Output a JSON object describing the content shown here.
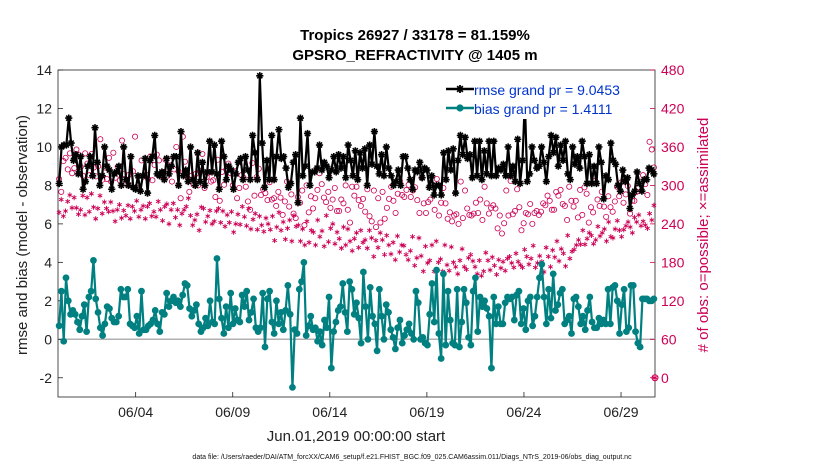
{
  "chart_data": {
    "type": "line",
    "title": "Tropics 26927 / 33178 = 81.159%",
    "subtitle": "GPSRO_REFRACTIVITY @ 1405 m",
    "xlabel": "Jun.01,2019 00:00:00 start",
    "ylabel": "rmse and bias (model - observation)",
    "y2label": "# of obs: o=possible; ×=assimilated",
    "footnote": "data file: /Users/raeder/DAI/ATM_forcXX/CAM6_setup/f.e21.FHIST_BGC.f09_025.CAM6assim.011/Diags_NTrS_2019-06/obs_diag_output.nc",
    "x_tick_labels": [
      "06/04",
      "06/09",
      "06/14",
      "06/19",
      "06/24",
      "06/29"
    ],
    "x_tick_days": [
      4,
      9,
      14,
      19,
      24,
      29
    ],
    "xlim": [
      0.0,
      30.75
    ],
    "ylim": [
      -3,
      14
    ],
    "y_ticks": [
      -2,
      0,
      2,
      4,
      6,
      8,
      10,
      12,
      14
    ],
    "y2lim": [
      -30,
      480
    ],
    "y2_ticks": [
      0,
      60,
      120,
      180,
      240,
      300,
      360,
      420,
      480
    ],
    "grid": false,
    "legend_position": "top-right",
    "colors": {
      "rmse": "#000000",
      "bias": "#008080",
      "obs": "#cc0055",
      "zero_line": "#b0b0b0",
      "legend_text": "#0033cc"
    },
    "series": [
      {
        "name": "rmse grand pr = 9.0453",
        "axis": "left",
        "marker": "star",
        "values": [
          8.1,
          10.0,
          10.1,
          10.1,
          11.5,
          10.2,
          9.3,
          9.6,
          8.6,
          9.5,
          7.8,
          8.2,
          9.0,
          9.5,
          8.5,
          11.0,
          9.2,
          8.0,
          8.5,
          10.0,
          9.0,
          8.8,
          7.8,
          8.6,
          8.7,
          9.0,
          8.0,
          10.0,
          8.3,
          8.0,
          9.5,
          7.9,
          7.8,
          8.5,
          7.7,
          8.5,
          9.4,
          7.6,
          9.3,
          9.5,
          10.6,
          8.6,
          8.5,
          8.7,
          8.3,
          9.4,
          8.6,
          9.0,
          9.5,
          9.5,
          8.0,
          10.8,
          8.5,
          8.8,
          8.2,
          10.0,
          8.3,
          8.0,
          9.7,
          8.2,
          9.2,
          8.0,
          8.7,
          10.3,
          8.7,
          10.1,
          8.6,
          7.8,
          10.3,
          9.5,
          8.3,
          9.0,
          8.8,
          7.8,
          8.6,
          9.2,
          9.4,
          8.3,
          9.5,
          8.8,
          8.3,
          10.6,
          9.7,
          8.3,
          13.7,
          10.2,
          7.9,
          9.3,
          8.3,
          10.6,
          8.3,
          9.5,
          10.9,
          9.4,
          9.5,
          8.9,
          7.9,
          8.1,
          9.2,
          9.6,
          7.1,
          11.5,
          8.5,
          9.0,
          10.7,
          8.0,
          8.7,
          8.7,
          8.9,
          10.1,
          8.8,
          9.2,
          9.0,
          8.4,
          8.8,
          9.5,
          8.7,
          9.6,
          8.9,
          9.5,
          8.4,
          10.1,
          9.3,
          8.5,
          9.8,
          8.3,
          9.7,
          8.9,
          9.9,
          8.0,
          10.1,
          9.1,
          10.8,
          9.0,
          8.6,
          9.6,
          8.5,
          10.0,
          8.9,
          8.5,
          8.0,
          8.2,
          8.8,
          8.0,
          9.5,
          9.5,
          8.9,
          8.3,
          7.8,
          8.8,
          8.7,
          9.2,
          8.4,
          8.9,
          8.8,
          7.9,
          8.5,
          7.5,
          8.0,
          8.0,
          7.5,
          9.7,
          8.3,
          9.8,
          8.8,
          9.9,
          7.6,
          9.3,
          10.6,
          9.6,
          10.5,
          9.4,
          9.6,
          8.4,
          10.3,
          8.5,
          10.3,
          8.3,
          9.8,
          8.6,
          10.3,
          8.5,
          10.3,
          8.5,
          8.9,
          8.8,
          9.1,
          8.5,
          10.0,
          8.5,
          9.0,
          8.2,
          10.4,
          8.1,
          9.3,
          12.4,
          8.2,
          8.6,
          10.0,
          9.3,
          8.9,
          9.0,
          10.0,
          9.2,
          8.2,
          9.5,
          10.6,
          9.7,
          10.5,
          9.0,
          10.1,
          9.3,
          10.3,
          8.6,
          8.3,
          10.0,
          9.1,
          9.5,
          8.9,
          10.3,
          9.5,
          8.1,
          9.6,
          8.1,
          9.0,
          8.1,
          10.0,
          9.2,
          7.3,
          8.5,
          8.3,
          10.2,
          9.3,
          9.1,
          8.0,
          7.7,
          8.8,
          8.2,
          8.4,
          6.8,
          7.5,
          7.7,
          8.7,
          8.1,
          7.7,
          8.3,
          8.3,
          8.9,
          8.8,
          8.6
        ]
      },
      {
        "name": "bias grand pr = 1.4111",
        "axis": "left",
        "marker": "dot",
        "values": [
          0.7,
          2.5,
          -0.1,
          3.2,
          2.0,
          1.3,
          1.5,
          1.3,
          0.9,
          0.5,
          1.2,
          1.8,
          0.4,
          2.2,
          2.5,
          4.1,
          2.1,
          1.4,
          0.6,
          0.2,
          0.8,
          1.7,
          1.6,
          1.1,
          0.9,
          0.9,
          1.2,
          2.6,
          2.2,
          2.2,
          2.6,
          0.8,
          0.7,
          0.6,
          1.2,
          0.3,
          2.5,
          0.5,
          0.5,
          0.7,
          0.8,
          1.0,
          1.5,
          0.8,
          0.4,
          1.4,
          1.3,
          2.4,
          1.7,
          2.0,
          2.2,
          1.9,
          2.0,
          1.7,
          2.3,
          2.9,
          2.8,
          1.6,
          1.2,
          1.5,
          1.8,
          0.8,
          0.4,
          0.6,
          1.1,
          0.7,
          2.0,
          0.9,
          0.8,
          4.2,
          2.1,
          1.1,
          0.3,
          1.7,
          0.6,
          2.4,
          0.8,
          1.6,
          1.0,
          0.9,
          2.3,
          1.7,
          2.5,
          1.0,
          1.4,
          2.1,
          0.6,
          0.4,
          0.6,
          2.4,
          -0.4,
          2.1,
          2.5,
          0.9,
          0.3,
          2.0,
          0.8,
          1.4,
          0.5,
          1.5,
          2.8,
          1.3,
          -2.5,
          0.5,
          0.3,
          2.6,
          3.0,
          4.0,
          0.2,
          0.7,
          1.2,
          0.5,
          0.6,
          -0.1,
          0.4,
          -0.3,
          1.0,
          0.6,
          2.2,
          -1.5,
          0.4,
          0.9,
          1.5,
          1.7,
          2.9,
          1.4,
          0.4,
          3.0,
          2.6,
          1.3,
          1.9,
          1.1,
          -0.2,
          3.5,
          1.7,
          0.0,
          2.7,
          1.2,
          0.8,
          -0.6,
          2.6,
          1.2,
          0.0,
          1.8,
          1.4,
          0.5,
          0.1,
          -0.5,
          0.6,
          1.0,
          -0.2,
          0.2,
          0.5,
          0.8,
          0.3,
          0.0,
          2.5,
          1.9,
          0.0,
          0.1,
          -0.2,
          -0.3,
          1.3,
          2.9,
          0.9,
          3.6,
          0.3,
          -1.0,
          3.4,
          -0.3,
          2.5,
          1.0,
          -0.2,
          -0.3,
          2.6,
          -0.4,
          0.9,
          2.6,
          1.9,
          0.1,
          -0.3,
          2.5,
          3.2,
          0.4,
          2.2,
          1.7,
          2.0,
          1.6,
          1.2,
          -1.5,
          2.2,
          0.8,
          1.7,
          0.8,
          0.8,
          1.9,
          2.2,
          2.1,
          2.2,
          1.0,
          2.3,
          2.5,
          0.8,
          1.6,
          0.5,
          2.0,
          2.2,
          0.7,
          1.2,
          2.2,
          3.2,
          3.9,
          2.2,
          0.8,
          2.6,
          1.1,
          3.4,
          1.5,
          1.8,
          2.4,
          2.6,
          0.8,
          1.0,
          1.2,
          0.3,
          2.1,
          2.2,
          1.7,
          0.8,
          1.2,
          0.5,
          1.5,
          2.2,
          0.9,
          0.6,
          0.6,
          1.1,
          0.8,
          1.0,
          0.8,
          2.6,
          0.8,
          2.7,
          2.8,
          2.0,
          0.3,
          1.8,
          2.6,
          0.4,
          0.6,
          2.8,
          2.8,
          0.4,
          -0.2,
          -0.4,
          2.1,
          2.1,
          2.1,
          2.0,
          2.0,
          2.1
        ]
      },
      {
        "name": "",
        "axis": "right",
        "marker": "circle",
        "values": [
          310,
          290,
          338,
          343,
          325,
          350,
          319,
          327,
          356,
          348,
          329,
          315,
          350,
          334,
          316,
          349,
          328,
          314,
          330,
          372,
          309,
          328,
          310,
          343,
          306,
          351,
          312,
          329,
          308,
          370,
          318,
          302,
          316,
          300,
          322,
          376,
          296,
          294,
          339,
          314,
          317,
          310,
          345,
          308,
          332,
          348,
          339,
          314,
          321,
          340,
          315,
          339,
          306,
          325,
          360,
          322,
          280,
          376,
          337,
          313,
          290,
          315,
          301,
          318,
          300,
          322,
          349,
          296,
          313,
          320,
          306,
          308,
          282,
          340,
          276,
          321,
          301,
          325,
          334,
          319,
          300,
          322,
          280,
          296,
          316,
          312,
          298,
          275,
          262,
          335,
          284,
          313,
          326,
          285,
          294,
          288,
          277,
          305,
          278,
          280,
          268,
          290,
          281,
          254,
          275,
          306,
          267,
          286,
          256,
          249,
          282,
          273,
          292,
          238,
          300,
          258,
          283,
          264,
          280,
          293,
          319,
          302,
          281,
          274,
          290,
          265,
          278,
          296,
          260,
          260,
          278,
          272,
          300,
          262,
          242,
          298,
          284,
          298,
          277,
          268,
          279,
          259,
          294,
          252,
          244,
          292,
          235,
          280,
          242,
          290,
          248,
          265,
          279,
          298,
          276,
          257,
          287,
          307,
          285,
          282,
          293,
          301,
          282,
          292,
          297,
          277,
          257,
          312,
          272,
          257,
          274,
          278,
          301,
          262,
          310,
          253,
          273,
          296,
          272,
          248,
          258,
          244,
          253,
          255,
          240,
          306,
          249,
          292,
          264,
          254,
          253,
          256,
          273,
          257,
          278,
          246,
          298,
          272,
          256,
          265,
          269,
          264,
          233,
          253,
          225,
          241,
          292,
          253,
          307,
          255,
          260,
          294,
          266,
          230,
          241,
          257,
          255,
          271,
          240,
          257,
          260,
          254,
          259,
          272,
          269,
          284,
          276,
          262,
          262,
          290,
          284,
          293,
          271,
          268,
          246,
          298,
          276,
          267,
          276,
          250,
          293,
          254,
          297,
          287,
          242,
          266,
          258,
          307,
          278,
          268,
          290,
          267,
          251,
          283,
          266,
          259,
          275,
          298,
          283,
          305,
          273,
          286,
          299,
          256,
          276,
          276,
          290,
          297,
          306,
          316,
          302,
          285,
          368,
          356,
          328
        ]
      },
      {
        "name": "",
        "axis": "right",
        "marker": "asterisk",
        "values": [
          258,
          278,
          252,
          260,
          275,
          285,
          265,
          281,
          265,
          255,
          262,
          284,
          254,
          281,
          259,
          287,
          266,
          248,
          264,
          284,
          256,
          274,
          264,
          259,
          274,
          260,
          244,
          262,
          270,
          249,
          261,
          253,
          269,
          248,
          267,
          260,
          276,
          251,
          262,
          268,
          248,
          267,
          272,
          252,
          259,
          251,
          275,
          262,
          245,
          267,
          271,
          240,
          262,
          272,
          250,
          262,
          238,
          256,
          262,
          267,
          280,
          253,
          238,
          246,
          255,
          230,
          266,
          264,
          243,
          252,
          261,
          240,
          244,
          260,
          264,
          242,
          260,
          236,
          254,
          242,
          259,
          227,
          240,
          255,
          239,
          267,
          251,
          237,
          264,
          232,
          247,
          256,
          231,
          252,
          238,
          228,
          249,
          240,
          231,
          252,
          214,
          235,
          258,
          230,
          243,
          216,
          233,
          246,
          213,
          253,
          236,
          238,
          213,
          232,
          207,
          244,
          211,
          230,
          227,
          207,
          246,
          220,
          229,
          205,
          253,
          212,
          233,
          240,
          209,
          227,
          217,
          202,
          235,
          207,
          232,
          213,
          198,
          217,
          226,
          203,
          230,
          211,
          215,
          202,
          230,
          218,
          189,
          214,
          203,
          226,
          215,
          192,
          222,
          207,
          193,
          211,
          184,
          221,
          196,
          207,
          206,
          192,
          184,
          198,
          220,
          175,
          187,
          218,
          190,
          166,
          205,
          179,
          183,
          207,
          166,
          213,
          180,
          185,
          166,
          207,
          176,
          167,
          204,
          180,
          173,
          162,
          183,
          201,
          173,
          169,
          187,
          192,
          182,
          173,
          162,
          183,
          159,
          166,
          195,
          183,
          168,
          188,
          175,
          161,
          184,
          171,
          181,
          167,
          186,
          189,
          179,
          172,
          194,
          181,
          176,
          172,
          200,
          189,
          177,
          186,
          206,
          172,
          179,
          190,
          181,
          165,
          203,
          189,
          173,
          199,
          188,
          213,
          182,
          201,
          194,
          174,
          222,
          186,
          197,
          200,
          207,
          215,
          208,
          230,
          208,
          217,
          226,
          222,
          209,
          215,
          236,
          221,
          226,
          232,
          213,
          243,
          220,
          218,
          232,
          245,
          230,
          220,
          231,
          237,
          243,
          235,
          226,
          250,
          243,
          254,
          237,
          244,
          238,
          233,
          256,
          246,
          269
        ]
      }
    ],
    "zero_marker_value": 0
  }
}
